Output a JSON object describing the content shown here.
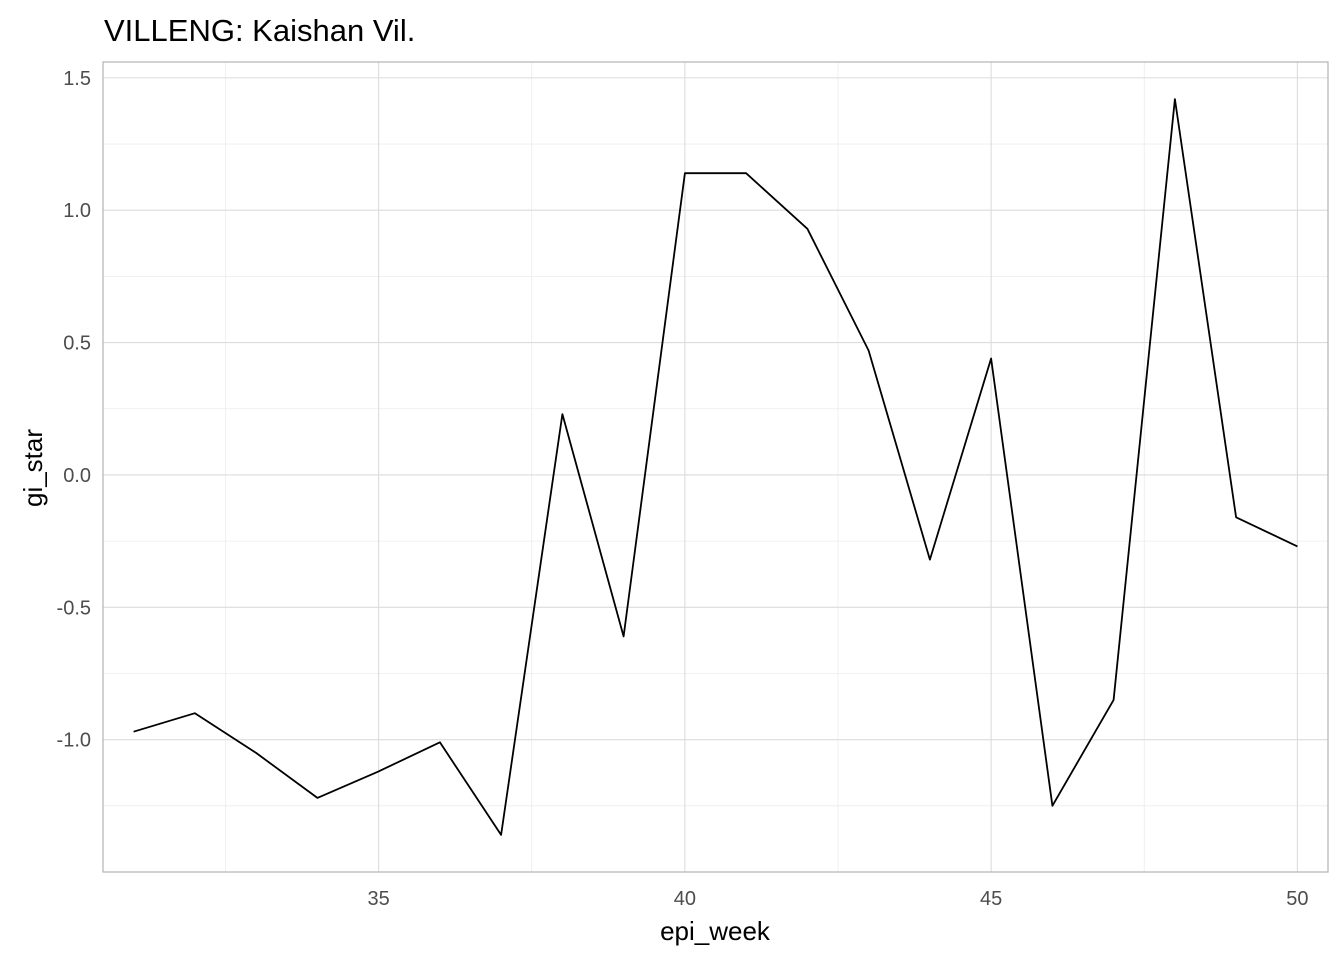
{
  "chart_data": {
    "type": "line",
    "title": "VILLENG: Kaishan Vil.",
    "xlabel": "epi_week",
    "ylabel": "gi_star",
    "xlim": [
      30.5,
      50.5
    ],
    "ylim": [
      -1.5,
      1.56
    ],
    "x_ticks": [
      35,
      40,
      45,
      50
    ],
    "x_tick_labels": [
      "35",
      "40",
      "45",
      "50"
    ],
    "x_minor_ticks": [
      32.5,
      37.5,
      42.5,
      47.5
    ],
    "y_ticks": [
      -1.0,
      -0.5,
      0.0,
      0.5,
      1.0,
      1.5
    ],
    "y_tick_labels": [
      "-1.0",
      "-0.5",
      "0.0",
      "0.5",
      "1.0",
      "1.5"
    ],
    "y_minor_ticks": [
      -1.25,
      -0.75,
      -0.25,
      0.25,
      0.75,
      1.25
    ],
    "grid": true,
    "series": [
      {
        "color": "#000000",
        "x": [
          31,
          32,
          33,
          34,
          35,
          36,
          37,
          38,
          39,
          40,
          41,
          42,
          43,
          44,
          45,
          46,
          47,
          48,
          49,
          50
        ],
        "values": [
          -0.97,
          -0.9,
          -1.05,
          -1.22,
          -1.12,
          -1.01,
          -1.36,
          0.23,
          -0.61,
          1.14,
          1.14,
          0.93,
          0.47,
          -0.32,
          0.44,
          -1.25,
          -0.85,
          1.42,
          -0.16,
          -0.27
        ]
      }
    ]
  }
}
